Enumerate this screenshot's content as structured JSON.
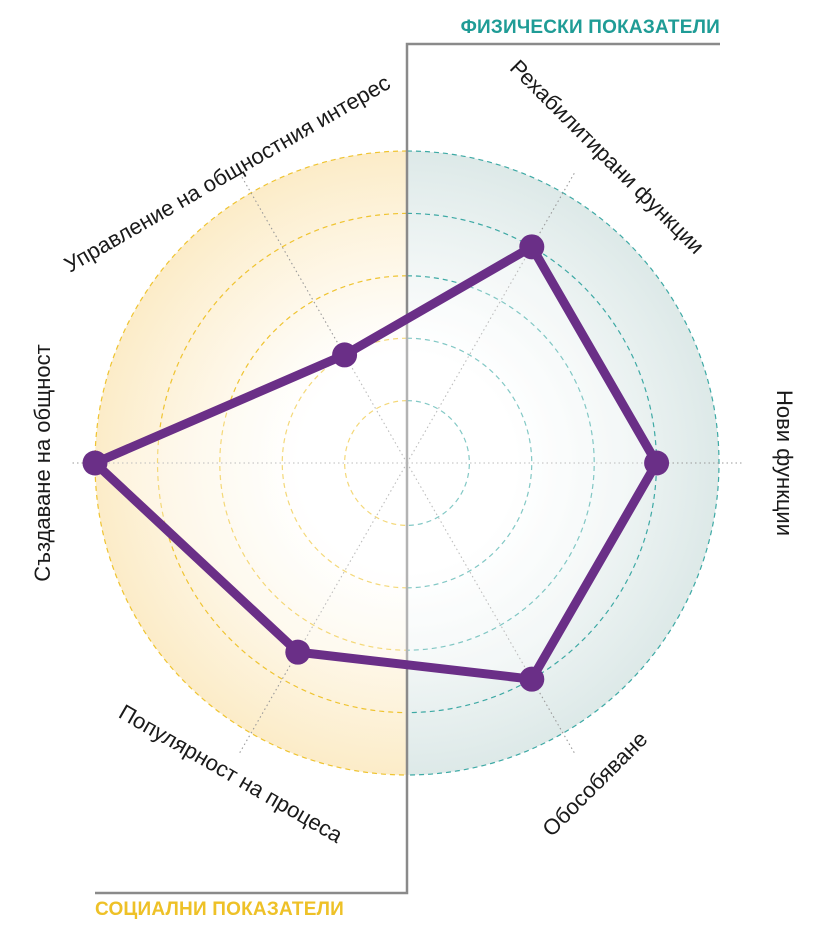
{
  "colors": {
    "physical_bg": "#dde9e8",
    "physical_line": "#1f9c96",
    "social_bg": "#fcecc8",
    "social_line": "#eec127",
    "polygon": "#6a2f87",
    "polygon_fill": "#ffffff",
    "divider": "#8a8a8a",
    "axis_dots": "#999999"
  },
  "chart_data": {
    "type": "radar",
    "title": "",
    "rmax": 5,
    "rings": [
      1,
      2,
      3,
      4,
      5
    ],
    "axes": [
      {
        "label": "Рехабилитирани функции",
        "group": "physical"
      },
      {
        "label": "Нови функции",
        "group": "physical"
      },
      {
        "label": "Обособяване",
        "group": "physical"
      },
      {
        "label": "Популярност на процеса",
        "group": "social"
      },
      {
        "label": "Създаване на общност",
        "group": "social"
      },
      {
        "label": "Управление на общностния интерес",
        "group": "social"
      }
    ],
    "groups": {
      "physical": {
        "label": "ФИЗИЧЕСКИ ПОКАЗАТЕЛИ"
      },
      "social": {
        "label": "СОЦИАЛНИ ПОКАЗАТЕЛИ"
      }
    },
    "series": [
      {
        "values": [
          4,
          4,
          4,
          3.5,
          5,
          2
        ]
      }
    ]
  }
}
